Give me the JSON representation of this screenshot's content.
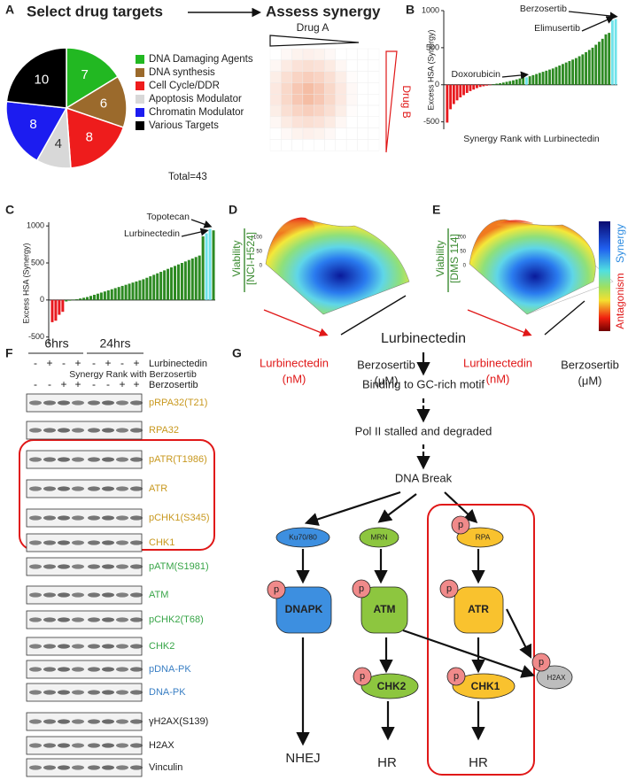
{
  "panel_labels": [
    "A",
    "B",
    "C",
    "D",
    "E",
    "F",
    "G"
  ],
  "panel_a": {
    "title": "Select drug targets",
    "arrow_target": "Assess synergy",
    "heatmap": {
      "x_label": "Drug A",
      "y_label": "Drug B"
    }
  },
  "chart_data": [
    {
      "type": "pie",
      "categories": [
        "DNA Damaging Agents",
        "DNA synthesis",
        "Cell Cycle/DDR",
        "Apoptosis Modulator",
        "Chromatin Modulator",
        "Various Targets"
      ],
      "values": [
        7,
        6,
        8,
        4,
        8,
        10
      ],
      "colors": [
        "#22b822",
        "#9b6a2c",
        "#ee1c1c",
        "#d8d8d8",
        "#1c1cf0",
        "#000000"
      ],
      "annotation": "Total=43"
    },
    {
      "type": "bar",
      "y_label": "Excess HSA (Synergy)",
      "x_label": "Synergy Rank with Lurbinectedin",
      "annotations": [
        "Berzosertib",
        "Elimusertib",
        "Doxorubicin"
      ],
      "values": [
        -510,
        -330,
        -260,
        -210,
        -170,
        -140,
        -110,
        -85,
        -65,
        -45,
        -30,
        -20,
        -12,
        -6,
        8,
        15,
        22,
        30,
        40,
        50,
        60,
        72,
        85,
        100,
        100,
        115,
        130,
        145,
        160,
        175,
        190,
        205,
        220,
        240,
        260,
        280,
        300,
        320,
        340,
        360,
        385,
        410,
        440,
        470,
        500,
        540,
        580,
        620,
        680,
        700,
        870,
        885
      ],
      "colors": [
        "#e8191e",
        "#e8191e",
        "#e8191e",
        "#e8191e",
        "#e8191e",
        "#e8191e",
        "#e8191e",
        "#e8191e",
        "#e8191e",
        "#e8191e",
        "#e8191e",
        "#e8191e",
        "#e8191e",
        "#e8191e",
        "#2d8a22",
        "#2d8a22",
        "#2d8a22",
        "#2d8a22",
        "#2d8a22",
        "#2d8a22",
        "#2d8a22",
        "#2d8a22",
        "#2d8a22",
        "#2d8a22",
        "#6fe3ea",
        "#2d8a22",
        "#2d8a22",
        "#2d8a22",
        "#2d8a22",
        "#2d8a22",
        "#2d8a22",
        "#2d8a22",
        "#2d8a22",
        "#2d8a22",
        "#2d8a22",
        "#2d8a22",
        "#2d8a22",
        "#2d8a22",
        "#2d8a22",
        "#2d8a22",
        "#2d8a22",
        "#2d8a22",
        "#2d8a22",
        "#2d8a22",
        "#2d8a22",
        "#2d8a22",
        "#2d8a22",
        "#2d8a22",
        "#2d8a22",
        "#2d8a22",
        "#6fe3ea",
        "#6fe3ea"
      ],
      "ylim": [
        -600,
        1000
      ],
      "yticks": [
        -500,
        0,
        500,
        1000
      ]
    },
    {
      "type": "bar",
      "y_label": "Excess HSA (Synergy)",
      "x_label": "Synergy Rank with Berzosertib",
      "annotations": [
        "Topotecan",
        "Lurbinectedin"
      ],
      "values": [
        -300,
        -280,
        -200,
        -160,
        -20,
        -10,
        5,
        10,
        20,
        30,
        40,
        55,
        70,
        85,
        100,
        115,
        130,
        145,
        160,
        175,
        190,
        205,
        220,
        235,
        250,
        265,
        280,
        300,
        320,
        340,
        360,
        380,
        400,
        420,
        440,
        460,
        480,
        500,
        520,
        540,
        560,
        580,
        600,
        860,
        900,
        960,
        940
      ],
      "colors": [
        "#e8191e",
        "#e8191e",
        "#e8191e",
        "#e8191e",
        "#2d8a22",
        "#2d8a22",
        "#2d8a22",
        "#2d8a22",
        "#2d8a22",
        "#2d8a22",
        "#2d8a22",
        "#2d8a22",
        "#2d8a22",
        "#2d8a22",
        "#2d8a22",
        "#2d8a22",
        "#2d8a22",
        "#2d8a22",
        "#2d8a22",
        "#2d8a22",
        "#2d8a22",
        "#2d8a22",
        "#2d8a22",
        "#2d8a22",
        "#2d8a22",
        "#2d8a22",
        "#2d8a22",
        "#2d8a22",
        "#2d8a22",
        "#2d8a22",
        "#2d8a22",
        "#2d8a22",
        "#2d8a22",
        "#2d8a22",
        "#2d8a22",
        "#2d8a22",
        "#2d8a22",
        "#2d8a22",
        "#2d8a22",
        "#2d8a22",
        "#2d8a22",
        "#2d8a22",
        "#2d8a22",
        "#2d8a22",
        "#6fe3ea",
        "#6fe3ea",
        "#2d8a22"
      ],
      "ylim": [
        -600,
        1050
      ],
      "yticks": [
        -500,
        0,
        500,
        1000
      ]
    }
  ],
  "surfaces": [
    {
      "z_label": "Viability",
      "cell_line": "[NCI-H524]",
      "x_label": "Lurbinectedin",
      "x_unit": "(nM)",
      "y_label": "Berzosertib",
      "y_unit": "(μM)",
      "zlim": [
        0,
        100
      ],
      "zticks": [
        0,
        50,
        100
      ]
    },
    {
      "z_label": "Viability",
      "cell_line": "[DMS 114]",
      "x_label": "Lurbinectedin",
      "x_unit": "(nM)",
      "y_label": "Berzosertib",
      "y_unit": "(μM)",
      "zlim": [
        0,
        100
      ],
      "zticks": [
        0,
        50,
        100
      ]
    }
  ],
  "colorbar": {
    "top": "Synergy",
    "bottom": "Antagonism"
  },
  "blot": {
    "timepoints": [
      "6hrs",
      "24hrs"
    ],
    "treatments": [
      {
        "name": "Lurbinectedin",
        "signs": [
          "-",
          "+",
          "-",
          "+",
          "-",
          "+",
          "-",
          "+"
        ]
      },
      {
        "name": "Berzosertib",
        "signs": [
          "-",
          "-",
          "+",
          "+",
          "-",
          "-",
          "+",
          "+"
        ]
      }
    ],
    "rows": [
      {
        "label": "pRPA32(T21)",
        "color": "#c8981e"
      },
      {
        "label": "RPA32",
        "color": "#c8981e"
      },
      {
        "label": "pATR(T1986)",
        "color": "#c8981e"
      },
      {
        "label": "ATR",
        "color": "#c8981e"
      },
      {
        "label": "pCHK1(S345)",
        "color": "#c8981e"
      },
      {
        "label": "CHK1",
        "color": "#c8981e"
      },
      {
        "label": "pATM(S1981)",
        "color": "#38a548"
      },
      {
        "label": "ATM",
        "color": "#38a548"
      },
      {
        "label": "pCHK2(T68)",
        "color": "#38a548"
      },
      {
        "label": "CHK2",
        "color": "#38a548"
      },
      {
        "label": "pDNA-PK",
        "color": "#3a7fc4"
      },
      {
        "label": "DNA-PK",
        "color": "#3a7fc4"
      },
      {
        "label": "γH2AX(S139)",
        "color": "#222222"
      },
      {
        "label": "H2AX",
        "color": "#222222"
      },
      {
        "label": "Vinculin",
        "color": "#222222"
      }
    ]
  },
  "pathway": {
    "steps": [
      "Lurbinectedin",
      "Binding to GC-rich motif",
      "Pol II stalled and degraded",
      "DNA Break"
    ],
    "sensors": [
      "Ku70/80",
      "MRN",
      "RPA"
    ],
    "kinases": [
      "DNAPK",
      "ATM",
      "ATR"
    ],
    "effectors": [
      "CHK2",
      "CHK1"
    ],
    "h2ax": "H2AX",
    "phospho": "p",
    "outcomes": [
      "NHEJ",
      "HR",
      "HR"
    ]
  }
}
